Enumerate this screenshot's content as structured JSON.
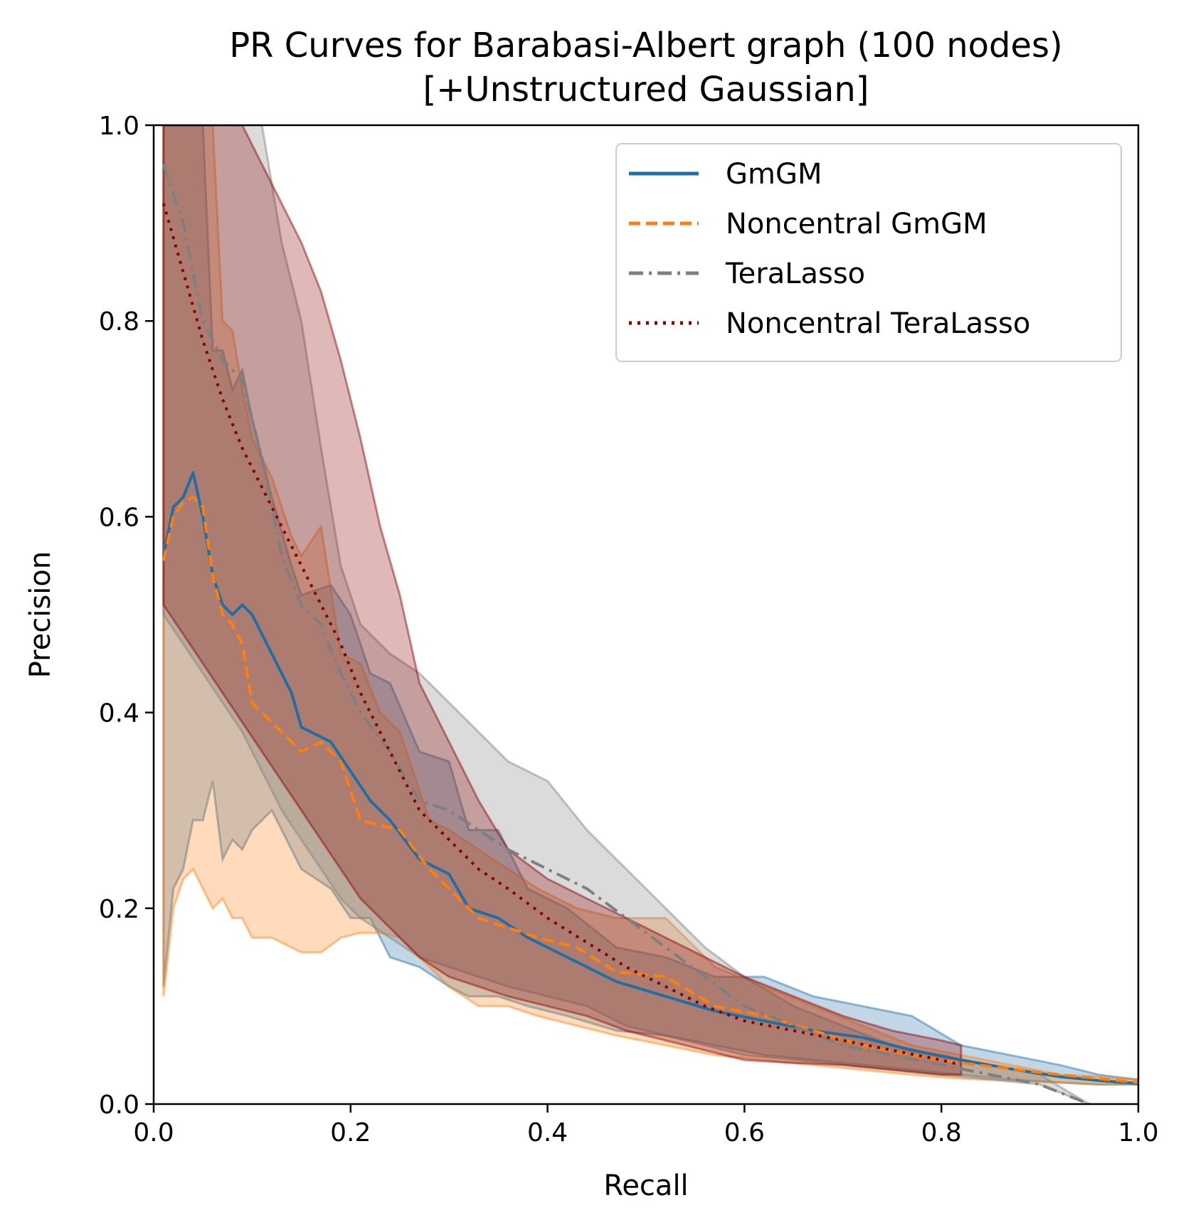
{
  "chart_data": {
    "type": "line",
    "title": "PR Curves for Barabasi-Albert graph (100 nodes)",
    "subtitle": "[+Unstructured Gaussian]",
    "xlabel": "Recall",
    "ylabel": "Precision",
    "xlim": [
      0.0,
      1.0
    ],
    "ylim": [
      0.0,
      1.0
    ],
    "xticks": [
      "0.0",
      "0.2",
      "0.4",
      "0.6",
      "0.8",
      "1.0"
    ],
    "yticks": [
      "0.0",
      "0.2",
      "0.4",
      "0.6",
      "0.8",
      "1.0"
    ],
    "grid": false,
    "legend_position": "top-right",
    "series": [
      {
        "name": "GmGM",
        "color": "#1f6fa5",
        "linestyle": "solid",
        "x": [
          0.01,
          0.02,
          0.03,
          0.04,
          0.05,
          0.06,
          0.07,
          0.08,
          0.09,
          0.1,
          0.12,
          0.14,
          0.15,
          0.18,
          0.2,
          0.22,
          0.24,
          0.27,
          0.3,
          0.32,
          0.35,
          0.38,
          0.42,
          0.47,
          0.52,
          0.57,
          0.62,
          0.67,
          0.72,
          0.77,
          0.82,
          0.87,
          0.92,
          0.96,
          1.0
        ],
        "y": [
          0.56,
          0.61,
          0.62,
          0.645,
          0.6,
          0.54,
          0.51,
          0.5,
          0.51,
          0.5,
          0.46,
          0.42,
          0.385,
          0.37,
          0.34,
          0.31,
          0.29,
          0.25,
          0.235,
          0.2,
          0.19,
          0.17,
          0.15,
          0.125,
          0.11,
          0.095,
          0.085,
          0.075,
          0.068,
          0.055,
          0.045,
          0.036,
          0.028,
          0.024,
          0.021
        ],
        "band_lower": [
          0.12,
          0.22,
          0.24,
          0.29,
          0.29,
          0.33,
          0.25,
          0.27,
          0.26,
          0.28,
          0.3,
          0.26,
          0.24,
          0.22,
          0.19,
          0.19,
          0.15,
          0.14,
          0.12,
          0.11,
          0.11,
          0.1,
          0.09,
          0.075,
          0.07,
          0.06,
          0.05,
          0.045,
          0.04,
          0.035,
          0.03,
          0.025,
          0.022,
          0.02,
          0.02
        ],
        "band_upper": [
          1.0,
          1.0,
          1.0,
          1.0,
          1.0,
          0.77,
          0.77,
          0.73,
          0.75,
          0.7,
          0.62,
          0.55,
          0.52,
          0.53,
          0.5,
          0.44,
          0.43,
          0.36,
          0.35,
          0.28,
          0.28,
          0.22,
          0.2,
          0.16,
          0.15,
          0.13,
          0.13,
          0.11,
          0.1,
          0.09,
          0.06,
          0.05,
          0.04,
          0.03,
          0.025
        ]
      },
      {
        "name": "Noncentral GmGM",
        "color": "#ff7f0e",
        "linestyle": "dashed",
        "x": [
          0.01,
          0.02,
          0.03,
          0.04,
          0.05,
          0.06,
          0.07,
          0.08,
          0.09,
          0.1,
          0.12,
          0.14,
          0.15,
          0.17,
          0.19,
          0.21,
          0.23,
          0.25,
          0.28,
          0.3,
          0.33,
          0.36,
          0.39,
          0.43,
          0.47,
          0.52,
          0.57,
          0.62,
          0.67,
          0.72,
          0.77,
          0.82,
          0.87,
          0.92,
          0.96,
          1.0
        ],
        "y": [
          0.555,
          0.6,
          0.615,
          0.62,
          0.61,
          0.54,
          0.5,
          0.49,
          0.47,
          0.41,
          0.39,
          0.37,
          0.36,
          0.37,
          0.35,
          0.29,
          0.285,
          0.28,
          0.24,
          0.22,
          0.19,
          0.18,
          0.17,
          0.16,
          0.135,
          0.13,
          0.1,
          0.09,
          0.075,
          0.06,
          0.05,
          0.042,
          0.036,
          0.03,
          0.026,
          0.022
        ],
        "band_lower": [
          0.11,
          0.2,
          0.23,
          0.24,
          0.22,
          0.2,
          0.21,
          0.19,
          0.19,
          0.17,
          0.17,
          0.16,
          0.155,
          0.155,
          0.17,
          0.175,
          0.175,
          0.17,
          0.14,
          0.12,
          0.1,
          0.1,
          0.09,
          0.08,
          0.07,
          0.06,
          0.05,
          0.045,
          0.04,
          0.035,
          0.03,
          0.026,
          0.024,
          0.022,
          0.02,
          0.02
        ],
        "band_upper": [
          1.0,
          1.0,
          1.0,
          1.0,
          1.0,
          1.0,
          0.8,
          0.79,
          0.73,
          0.68,
          0.64,
          0.58,
          0.56,
          0.59,
          0.46,
          0.45,
          0.4,
          0.38,
          0.29,
          0.28,
          0.26,
          0.24,
          0.22,
          0.2,
          0.19,
          0.19,
          0.14,
          0.12,
          0.1,
          0.08,
          0.06,
          0.05,
          0.04,
          0.03,
          0.028,
          0.025
        ]
      },
      {
        "name": "TeraLasso",
        "color": "#7f7f7f",
        "linestyle": "dashdot",
        "x": [
          0.01,
          0.03,
          0.05,
          0.07,
          0.09,
          0.11,
          0.13,
          0.15,
          0.17,
          0.19,
          0.21,
          0.24,
          0.27,
          0.3,
          0.33,
          0.36,
          0.4,
          0.44,
          0.48,
          0.52,
          0.56,
          0.6,
          0.65,
          0.7,
          0.75,
          0.8,
          0.85,
          0.9,
          0.95
        ],
        "y": [
          0.96,
          0.9,
          0.8,
          0.76,
          0.74,
          0.66,
          0.56,
          0.51,
          0.49,
          0.44,
          0.4,
          0.36,
          0.31,
          0.3,
          0.28,
          0.26,
          0.24,
          0.22,
          0.19,
          0.16,
          0.13,
          0.1,
          0.08,
          0.06,
          0.05,
          0.04,
          0.03,
          0.02,
          0.0
        ],
        "band_lower": [
          0.5,
          0.47,
          0.44,
          0.41,
          0.38,
          0.34,
          0.3,
          0.27,
          0.24,
          0.21,
          0.19,
          0.17,
          0.15,
          0.14,
          0.13,
          0.12,
          0.11,
          0.1,
          0.08,
          0.07,
          0.06,
          0.05,
          0.045,
          0.04,
          0.035,
          0.03,
          0.025,
          0.02,
          0.0
        ],
        "band_upper": [
          1.0,
          1.0,
          1.0,
          1.0,
          1.0,
          1.0,
          0.88,
          0.8,
          0.67,
          0.55,
          0.49,
          0.46,
          0.44,
          0.41,
          0.38,
          0.35,
          0.33,
          0.28,
          0.24,
          0.2,
          0.16,
          0.13,
          0.1,
          0.08,
          0.06,
          0.05,
          0.04,
          0.03,
          0.0
        ]
      },
      {
        "name": "Noncentral TeraLasso",
        "color": "#8b0000",
        "linestyle": "dotted",
        "x": [
          0.01,
          0.03,
          0.05,
          0.07,
          0.09,
          0.11,
          0.13,
          0.15,
          0.17,
          0.19,
          0.21,
          0.23,
          0.25,
          0.27,
          0.3,
          0.33,
          0.36,
          0.4,
          0.44,
          0.48,
          0.52,
          0.56,
          0.6,
          0.65,
          0.7,
          0.75,
          0.8,
          0.82
        ],
        "y": [
          0.92,
          0.85,
          0.78,
          0.72,
          0.67,
          0.63,
          0.59,
          0.55,
          0.51,
          0.47,
          0.42,
          0.38,
          0.34,
          0.3,
          0.27,
          0.24,
          0.22,
          0.19,
          0.165,
          0.14,
          0.12,
          0.1,
          0.085,
          0.075,
          0.065,
          0.055,
          0.045,
          0.04
        ],
        "band_lower": [
          0.51,
          0.48,
          0.45,
          0.42,
          0.39,
          0.36,
          0.33,
          0.3,
          0.27,
          0.24,
          0.21,
          0.19,
          0.17,
          0.15,
          0.13,
          0.12,
          0.11,
          0.1,
          0.09,
          0.075,
          0.065,
          0.055,
          0.045,
          0.042,
          0.04,
          0.035,
          0.03,
          0.03
        ],
        "band_upper": [
          1.0,
          1.0,
          1.0,
          1.0,
          1.0,
          0.96,
          0.92,
          0.88,
          0.83,
          0.76,
          0.68,
          0.59,
          0.52,
          0.43,
          0.37,
          0.31,
          0.26,
          0.23,
          0.21,
          0.19,
          0.17,
          0.15,
          0.13,
          0.11,
          0.09,
          0.075,
          0.065,
          0.06
        ]
      }
    ]
  }
}
